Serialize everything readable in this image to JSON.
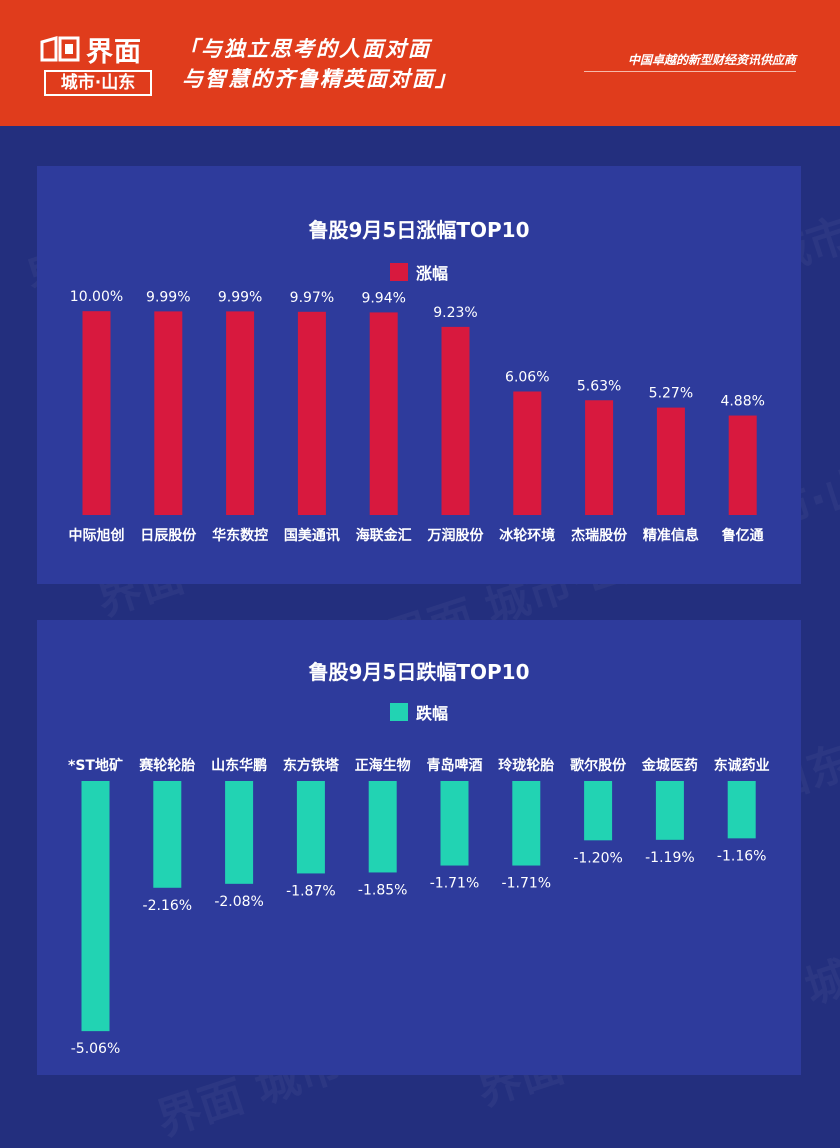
{
  "header": {
    "logo_text": "界面",
    "logo_sub": "城市·山东",
    "slogan_line1": "「与独立思考的人面对面",
    "slogan_line2": "与智慧的齐鲁精英面对面」",
    "tagline": "中国卓越的新型财经资讯供应商",
    "watermark_text": "界面 城市·山东"
  },
  "colors": {
    "header_bg": "#e03c1c",
    "page_bg": "#232f7e",
    "panel_bg": "#2e3b9c",
    "gain_bar": "#d8193e",
    "loss_bar": "#22d3b3"
  },
  "chart_data": [
    {
      "type": "bar",
      "title": "鲁股9月5日涨幅TOP10",
      "categories": [
        "中际旭创",
        "日辰股份",
        "华东数控",
        "国美通讯",
        "海联金汇",
        "万润股份",
        "冰轮环境",
        "杰瑞股份",
        "精准信息",
        "鲁亿通"
      ],
      "series": [
        {
          "name": "涨幅",
          "values": [
            10.0,
            9.99,
            9.99,
            9.97,
            9.94,
            9.23,
            6.06,
            5.63,
            5.27,
            4.88
          ]
        }
      ],
      "value_labels": [
        "10.00%",
        "9.99%",
        "9.99%",
        "9.97%",
        "9.94%",
        "9.23%",
        "6.06%",
        "5.63%",
        "5.27%",
        "4.88%"
      ],
      "ylim": [
        0,
        10.5
      ],
      "legend": "top-center",
      "grid": false
    },
    {
      "type": "bar",
      "title": "鲁股9月5日跌幅TOP10",
      "categories": [
        "*ST地矿",
        "赛轮轮胎",
        "山东华鹏",
        "东方铁塔",
        "正海生物",
        "青岛啤酒",
        "玲珑轮胎",
        "歌尔股份",
        "金城医药",
        "东诚药业"
      ],
      "series": [
        {
          "name": "跌幅",
          "values": [
            -5.06,
            -2.16,
            -2.08,
            -1.87,
            -1.85,
            -1.71,
            -1.71,
            -1.2,
            -1.19,
            -1.16
          ]
        }
      ],
      "value_labels": [
        "-5.06%",
        "-2.16%",
        "-2.08%",
        "-1.87%",
        "-1.85%",
        "-1.71%",
        "-1.71%",
        "-1.20%",
        "-1.19%",
        "-1.16%"
      ],
      "ylim": [
        -5.3,
        0
      ],
      "legend": "top-center",
      "grid": false
    }
  ]
}
